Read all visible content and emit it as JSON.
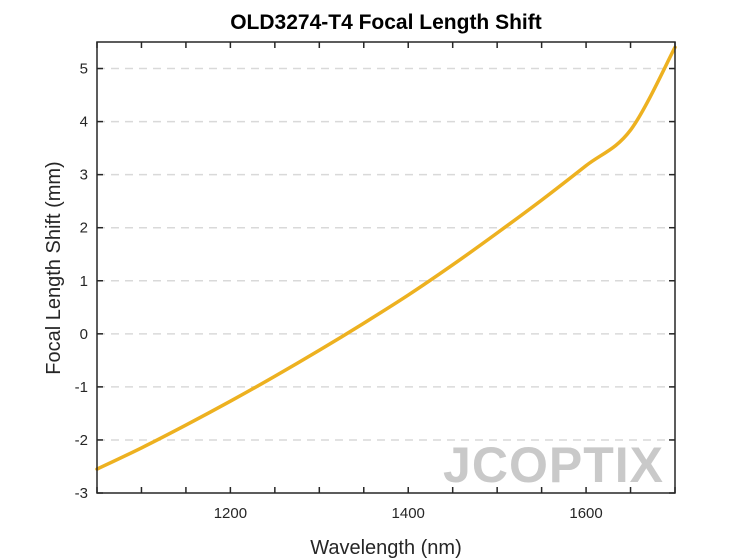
{
  "chart_data": {
    "type": "line",
    "title": "OLD3274-T4 Focal Length Shift",
    "xlabel": "Wavelength (nm)",
    "ylabel": "Focal Length Shift (mm)",
    "xlim": [
      1050,
      1700
    ],
    "ylim": [
      -3,
      5.5
    ],
    "xticks": [
      1200,
      1400,
      1600
    ],
    "yticks": [
      -3,
      -2,
      -1,
      0,
      1,
      2,
      3,
      4,
      5
    ],
    "minor_xticks_step": 50,
    "grid": "horizontal dashed",
    "series": [
      {
        "color": "#EDB120",
        "x": [
          1050,
          1100,
          1150,
          1200,
          1250,
          1300,
          1350,
          1400,
          1450,
          1500,
          1550,
          1600,
          1650,
          1700
        ],
        "y": [
          -2.55,
          -2.15,
          -1.72,
          -1.27,
          -0.8,
          -0.31,
          0.2,
          0.73,
          1.3,
          1.9,
          2.52,
          3.17,
          3.84,
          5.4
        ]
      }
    ],
    "watermark": "JCOPTIX"
  }
}
